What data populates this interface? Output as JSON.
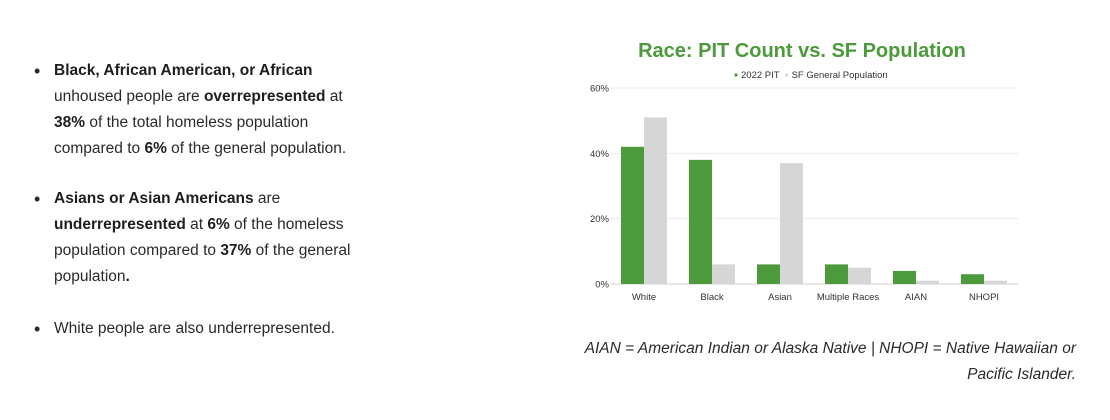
{
  "bullets": [
    {
      "parts": [
        {
          "t": "Black, African American, or African",
          "b": true
        },
        {
          "t": " unhoused people are ",
          "b": false
        },
        {
          "t": "overrepresented",
          "b": true
        },
        {
          "t": " at ",
          "b": false
        },
        {
          "t": "38%",
          "b": true
        },
        {
          "t": " of the total homeless population compared to ",
          "b": false
        },
        {
          "t": "6%",
          "b": true
        },
        {
          "t": " of the general population.",
          "b": false
        }
      ]
    },
    {
      "parts": [
        {
          "t": "Asians or Asian Americans",
          "b": true
        },
        {
          "t": " are ",
          "b": false
        },
        {
          "t": "underrepresented",
          "b": true
        },
        {
          "t": " at ",
          "b": false
        },
        {
          "t": "6%",
          "b": true
        },
        {
          "t": " of the homeless population compared to ",
          "b": false
        },
        {
          "t": "37%",
          "b": true
        },
        {
          "t": " of the general population",
          "b": false
        },
        {
          "t": ".",
          "b": true
        }
      ]
    },
    {
      "parts": [
        {
          "t": "White people are also underrepresented.",
          "b": false
        }
      ]
    }
  ],
  "chart_data": {
    "type": "bar",
    "title": "Race: PIT Count vs. SF Population",
    "categories": [
      "White",
      "Black",
      "Asian",
      "Multiple Races",
      "AIAN",
      "NHOPI"
    ],
    "series": [
      {
        "name": "2022 PIT",
        "color": "#4c9a3b",
        "values": [
          42,
          38,
          6,
          6,
          4,
          3
        ]
      },
      {
        "name": "SF General Population",
        "color": "#d6d6d6",
        "values": [
          51,
          6,
          37,
          5,
          1,
          1
        ]
      }
    ],
    "ylim": [
      0,
      60
    ],
    "yticks": [
      0,
      20,
      40,
      60
    ],
    "ytick_suffix": "%",
    "grid": true,
    "legend_position": "top-center"
  },
  "caption": "AIAN = American Indian or Alaska Native | NHOPI = Native Hawaiian or Pacific Islander."
}
